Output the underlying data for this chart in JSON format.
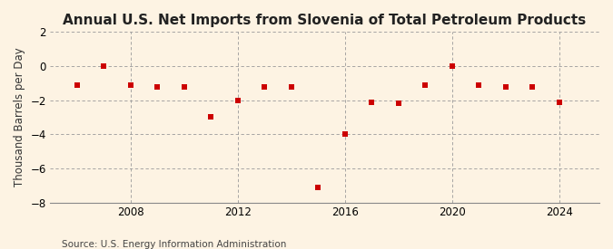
{
  "title": "Annual U.S. Net Imports from Slovenia of Total Petroleum Products",
  "ylabel": "Thousand Barrels per Day",
  "source": "Source: U.S. Energy Information Administration",
  "background_color": "#fdf3e3",
  "plot_bg_color": "#fdf3e3",
  "years": [
    2006,
    2007,
    2008,
    2009,
    2010,
    2011,
    2012,
    2013,
    2014,
    2015,
    2016,
    2017,
    2018,
    2019,
    2020,
    2021,
    2022,
    2023,
    2024
  ],
  "values": [
    -1.1,
    0.0,
    -1.1,
    -1.2,
    -1.2,
    -3.0,
    -2.0,
    -1.2,
    -1.2,
    -7.1,
    -4.0,
    -2.1,
    -2.2,
    -1.1,
    0.0,
    -1.1,
    -1.2,
    -1.2,
    -2.1
  ],
  "marker_color": "#cc0000",
  "marker_size": 18,
  "ylim": [
    -8,
    2
  ],
  "yticks": [
    -8,
    -6,
    -4,
    -2,
    0,
    2
  ],
  "xlim": [
    2005.0,
    2025.5
  ],
  "xticks": [
    2008,
    2012,
    2016,
    2020,
    2024
  ],
  "grid_color": "#999999",
  "title_fontsize": 11,
  "axis_fontsize": 8.5,
  "source_fontsize": 7.5
}
